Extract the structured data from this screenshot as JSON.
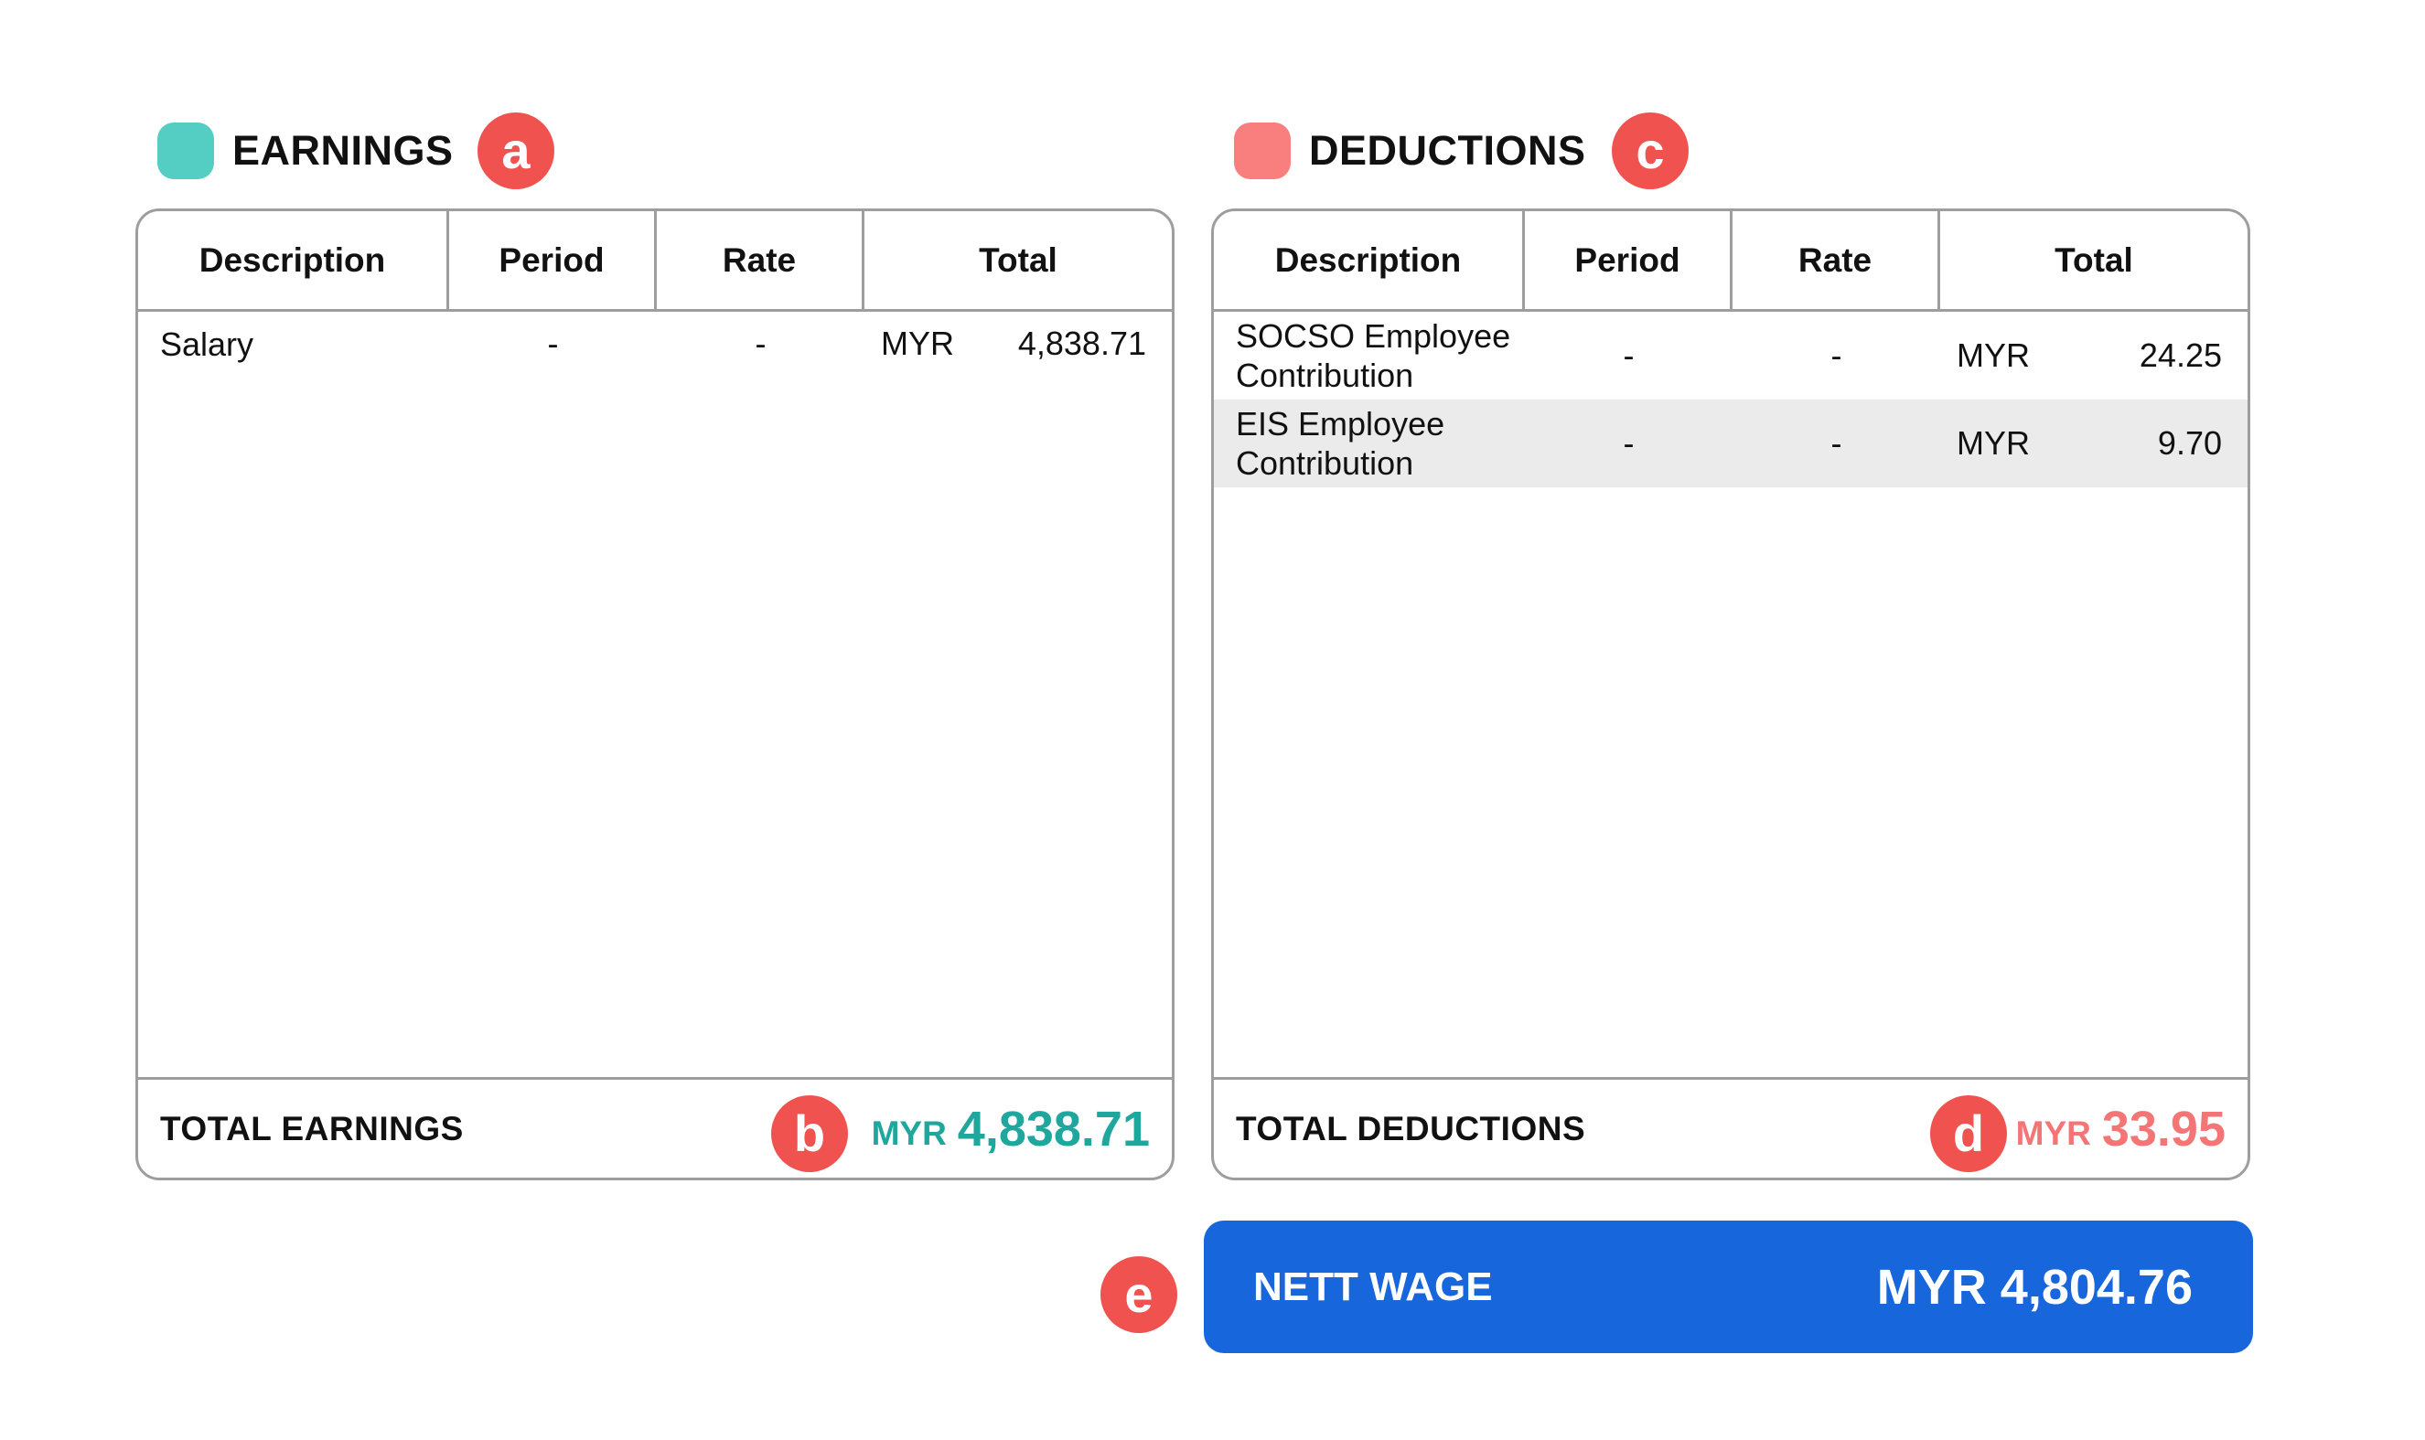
{
  "colors": {
    "earnings_accent": "#54cdc3",
    "earnings_total_text": "#1fa79d",
    "deductions_accent": "#f97f7f",
    "deductions_total_text": "#f37575",
    "marker": "#f0524f",
    "nett_wage_bg": "#1766dc"
  },
  "markers": {
    "a": "a",
    "b": "b",
    "c": "c",
    "d": "d",
    "e": "e"
  },
  "earnings": {
    "title": "EARNINGS",
    "columns": {
      "description": "Description",
      "period": "Period",
      "rate": "Rate",
      "total": "Total"
    },
    "rows": [
      {
        "description": "Salary",
        "period": "-",
        "rate": "-",
        "currency": "MYR",
        "amount": "4,838.71"
      }
    ],
    "total_label": "TOTAL EARNINGS",
    "total_currency": "MYR",
    "total_amount": "4,838.71"
  },
  "deductions": {
    "title": "DEDUCTIONS",
    "columns": {
      "description": "Description",
      "period": "Period",
      "rate": "Rate",
      "total": "Total"
    },
    "rows": [
      {
        "description": "SOCSO Employee Contribution",
        "period": "-",
        "rate": "-",
        "currency": "MYR",
        "amount": "24.25"
      },
      {
        "description": "EIS Employee Contribution",
        "period": "-",
        "rate": "-",
        "currency": "MYR",
        "amount": "9.70"
      }
    ],
    "total_label": "TOTAL DEDUCTIONS",
    "total_currency": "MYR",
    "total_amount": "33.95"
  },
  "nett_wage": {
    "label": "NETT WAGE",
    "value": "MYR 4,804.76"
  }
}
